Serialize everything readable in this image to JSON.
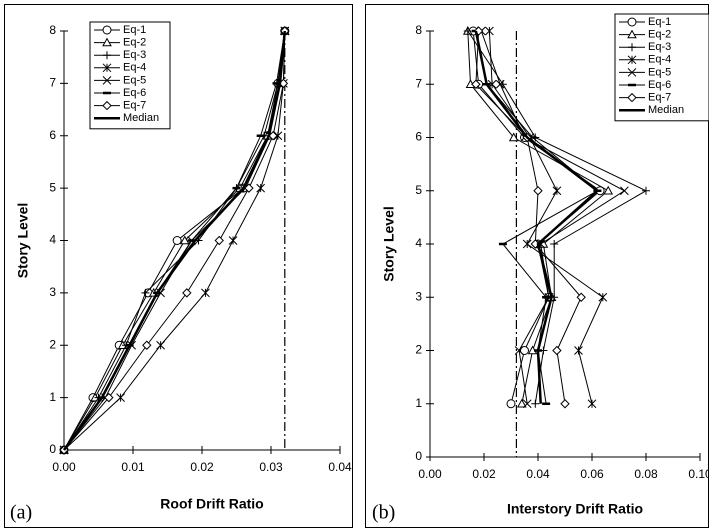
{
  "chart_data": [
    {
      "type": "line",
      "panel_label": "(a)",
      "xlabel": "Roof Drift Ratio",
      "ylabel": "Story Level",
      "xlim": [
        0,
        0.04
      ],
      "ylim": [
        0,
        8
      ],
      "xticks": [
        {
          "value": 0,
          "label": "0.00"
        },
        {
          "value": 0.01,
          "label": "0.01"
        },
        {
          "value": 0.02,
          "label": "0.02"
        },
        {
          "value": 0.03,
          "label": "0.03"
        },
        {
          "value": 0.04,
          "label": "0.04"
        }
      ],
      "yticks": [
        0,
        1,
        2,
        3,
        4,
        5,
        6,
        7,
        8
      ],
      "reference_line": 0.032,
      "legend": "upper left",
      "levels": [
        0,
        1,
        2,
        3,
        4,
        5,
        6,
        7,
        8
      ],
      "series": [
        {
          "name": "Eq-1",
          "marker": "circle",
          "color": "#000000",
          "values": [
            0,
            0.0042,
            0.008,
            0.0122,
            0.0164,
            0.026,
            0.0295,
            0.031,
            0.032
          ]
        },
        {
          "name": "Eq-2",
          "marker": "triangle",
          "color": "#000000",
          "values": [
            0,
            0.0045,
            0.0085,
            0.013,
            0.0175,
            0.0255,
            0.0295,
            0.0312,
            0.032
          ]
        },
        {
          "name": "Eq-3",
          "marker": "plus",
          "color": "#000000",
          "values": [
            0,
            0.005,
            0.009,
            0.0118,
            0.0195,
            0.025,
            0.029,
            0.031,
            0.032
          ]
        },
        {
          "name": "Eq-4",
          "marker": "asterisk",
          "color": "#000000",
          "values": [
            0,
            0.0082,
            0.014,
            0.0205,
            0.0245,
            0.0285,
            0.031,
            0.0318,
            0.032
          ]
        },
        {
          "name": "Eq-5",
          "marker": "x",
          "color": "#000000",
          "values": [
            0,
            0.006,
            0.0098,
            0.014,
            0.0185,
            0.0263,
            0.0298,
            0.0313,
            0.032
          ]
        },
        {
          "name": "Eq-6",
          "marker": "dash",
          "color": "#000000",
          "values": [
            0,
            0.0055,
            0.0095,
            0.0135,
            0.0185,
            0.025,
            0.0285,
            0.0308,
            0.032
          ]
        },
        {
          "name": "Eq-7",
          "marker": "diamond",
          "color": "#000000",
          "values": [
            0,
            0.0065,
            0.012,
            0.0178,
            0.0225,
            0.0268,
            0.0303,
            0.0318,
            0.032
          ]
        },
        {
          "name": "Median",
          "marker": "none",
          "color": "#000000",
          "values": [
            0,
            0.0055,
            0.0095,
            0.0135,
            0.019,
            0.026,
            0.0297,
            0.0313,
            0.032
          ]
        }
      ]
    },
    {
      "type": "line",
      "panel_label": "(b)",
      "xlabel": "Interstory Drift Ratio",
      "ylabel": "Story Level",
      "xlim": [
        0,
        0.1
      ],
      "ylim": [
        0,
        8
      ],
      "xticks": [
        {
          "value": 0,
          "label": "0.00"
        },
        {
          "value": 0.02,
          "label": "0.02"
        },
        {
          "value": 0.04,
          "label": "0.04"
        },
        {
          "value": 0.06,
          "label": "0.06"
        },
        {
          "value": 0.08,
          "label": "0.08"
        },
        {
          "value": 0.1,
          "label": "0.10"
        }
      ],
      "yticks": [
        0,
        1,
        2,
        3,
        4,
        5,
        6,
        7,
        8
      ],
      "reference_line": 0.032,
      "legend": "upper right",
      "levels": [
        1,
        2,
        3,
        4,
        5,
        6,
        7,
        8
      ],
      "series": [
        {
          "name": "Eq-1",
          "marker": "circle",
          "color": "#000000",
          "values": [
            0.03,
            0.035,
            0.044,
            0.04,
            0.063,
            0.035,
            0.018,
            0.016
          ]
        },
        {
          "name": "Eq-2",
          "marker": "triangle",
          "color": "#000000",
          "values": [
            0.034,
            0.038,
            0.045,
            0.042,
            0.066,
            0.031,
            0.015,
            0.014
          ]
        },
        {
          "name": "Eq-3",
          "marker": "plus",
          "color": "#000000",
          "values": [
            0.039,
            0.042,
            0.046,
            0.046,
            0.08,
            0.039,
            0.027,
            0.014
          ]
        },
        {
          "name": "Eq-4",
          "marker": "asterisk",
          "color": "#000000",
          "values": [
            0.06,
            0.055,
            0.064,
            0.036,
            0.047,
            0.037,
            0.023,
            0.022
          ]
        },
        {
          "name": "Eq-5",
          "marker": "x",
          "color": "#000000",
          "values": [
            0.036,
            0.033,
            0.044,
            0.041,
            0.072,
            0.035,
            0.026,
            0.019
          ]
        },
        {
          "name": "Eq-6",
          "marker": "dash",
          "color": "#000000",
          "values": [
            0.043,
            0.04,
            0.043,
            0.027,
            0.062,
            0.038,
            0.021,
            0.017
          ]
        },
        {
          "name": "Eq-7",
          "marker": "diamond",
          "color": "#000000",
          "values": [
            0.05,
            0.047,
            0.056,
            0.039,
            0.04,
            0.036,
            0.017,
            0.018
          ]
        },
        {
          "name": "Median",
          "marker": "none",
          "color": "#000000",
          "values": [
            0.041,
            0.04,
            0.045,
            0.04,
            0.062,
            0.036,
            0.021,
            0.017
          ]
        }
      ]
    }
  ]
}
